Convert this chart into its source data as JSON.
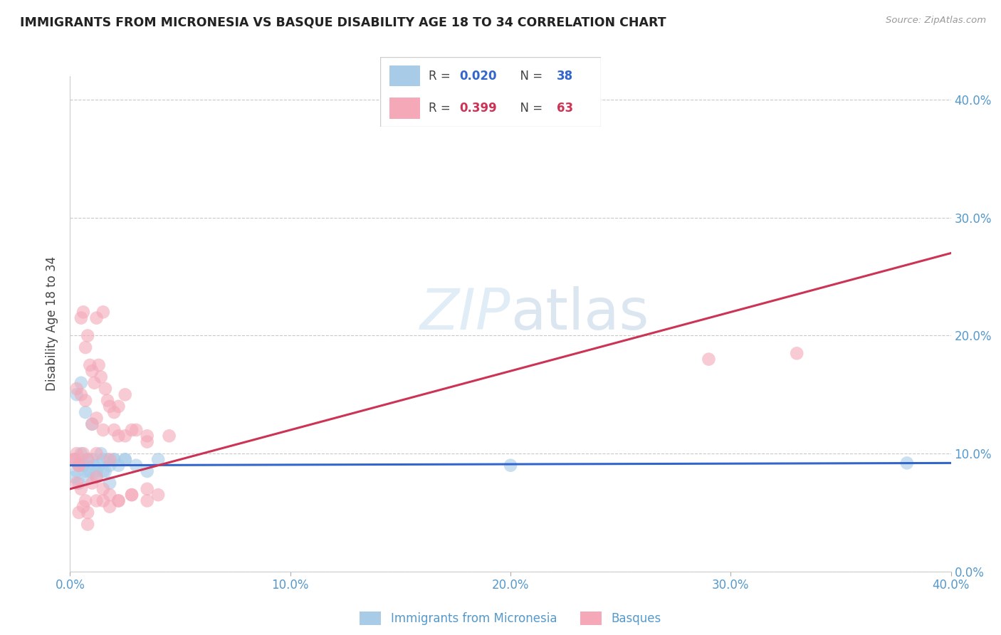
{
  "title": "IMMIGRANTS FROM MICRONESIA VS BASQUE DISABILITY AGE 18 TO 34 CORRELATION CHART",
  "source": "Source: ZipAtlas.com",
  "ylabel": "Disability Age 18 to 34",
  "xlim": [
    0.0,
    0.4
  ],
  "ylim": [
    0.0,
    0.42
  ],
  "xticks": [
    0.0,
    0.1,
    0.2,
    0.3,
    0.4
  ],
  "yticks": [
    0.0,
    0.1,
    0.2,
    0.3,
    0.4
  ],
  "xtick_labels": [
    "0.0%",
    "10.0%",
    "20.0%",
    "30.0%",
    "40.0%"
  ],
  "ytick_labels": [
    "0.0%",
    "10.0%",
    "20.0%",
    "30.0%",
    "40.0%"
  ],
  "blue_color": "#a8cce8",
  "pink_color": "#f4a8b8",
  "blue_line_color": "#3366cc",
  "pink_line_color": "#cc3355",
  "axis_color": "#5599cc",
  "title_color": "#222222",
  "blue_r": "0.020",
  "blue_n": "38",
  "pink_r": "0.399",
  "pink_n": "63",
  "blue_line_start_y": 0.09,
  "blue_line_end_y": 0.092,
  "pink_line_start_y": 0.07,
  "pink_line_end_y": 0.27,
  "blue_scatter_x": [
    0.002,
    0.003,
    0.004,
    0.005,
    0.006,
    0.007,
    0.008,
    0.009,
    0.01,
    0.011,
    0.012,
    0.013,
    0.014,
    0.015,
    0.016,
    0.017,
    0.018,
    0.02,
    0.022,
    0.025,
    0.003,
    0.005,
    0.007,
    0.01,
    0.015,
    0.02,
    0.025,
    0.03,
    0.035,
    0.04,
    0.002,
    0.004,
    0.006,
    0.008,
    0.012,
    0.018,
    0.2,
    0.38
  ],
  "blue_scatter_y": [
    0.095,
    0.085,
    0.09,
    0.1,
    0.09,
    0.085,
    0.095,
    0.085,
    0.095,
    0.09,
    0.085,
    0.09,
    0.1,
    0.095,
    0.085,
    0.095,
    0.09,
    0.095,
    0.09,
    0.095,
    0.15,
    0.16,
    0.135,
    0.125,
    0.085,
    0.095,
    0.095,
    0.09,
    0.085,
    0.095,
    0.08,
    0.075,
    0.09,
    0.08,
    0.08,
    0.075,
    0.09,
    0.092
  ],
  "pink_scatter_x": [
    0.002,
    0.003,
    0.004,
    0.005,
    0.006,
    0.007,
    0.008,
    0.009,
    0.01,
    0.011,
    0.012,
    0.013,
    0.014,
    0.015,
    0.016,
    0.017,
    0.018,
    0.02,
    0.022,
    0.025,
    0.003,
    0.005,
    0.007,
    0.01,
    0.012,
    0.015,
    0.02,
    0.025,
    0.03,
    0.035,
    0.002,
    0.004,
    0.006,
    0.008,
    0.012,
    0.018,
    0.022,
    0.028,
    0.035,
    0.045,
    0.003,
    0.005,
    0.007,
    0.01,
    0.012,
    0.015,
    0.018,
    0.022,
    0.028,
    0.035,
    0.004,
    0.006,
    0.008,
    0.012,
    0.015,
    0.018,
    0.022,
    0.028,
    0.035,
    0.04,
    0.29,
    0.33,
    0.008
  ],
  "pink_scatter_y": [
    0.095,
    0.1,
    0.09,
    0.215,
    0.22,
    0.19,
    0.2,
    0.175,
    0.17,
    0.16,
    0.215,
    0.175,
    0.165,
    0.22,
    0.155,
    0.145,
    0.14,
    0.135,
    0.14,
    0.15,
    0.155,
    0.15,
    0.145,
    0.125,
    0.13,
    0.12,
    0.12,
    0.115,
    0.12,
    0.115,
    0.095,
    0.09,
    0.1,
    0.095,
    0.1,
    0.095,
    0.115,
    0.12,
    0.11,
    0.115,
    0.075,
    0.07,
    0.06,
    0.075,
    0.08,
    0.07,
    0.065,
    0.06,
    0.065,
    0.07,
    0.05,
    0.055,
    0.05,
    0.06,
    0.06,
    0.055,
    0.06,
    0.065,
    0.06,
    0.065,
    0.18,
    0.185,
    0.04
  ]
}
